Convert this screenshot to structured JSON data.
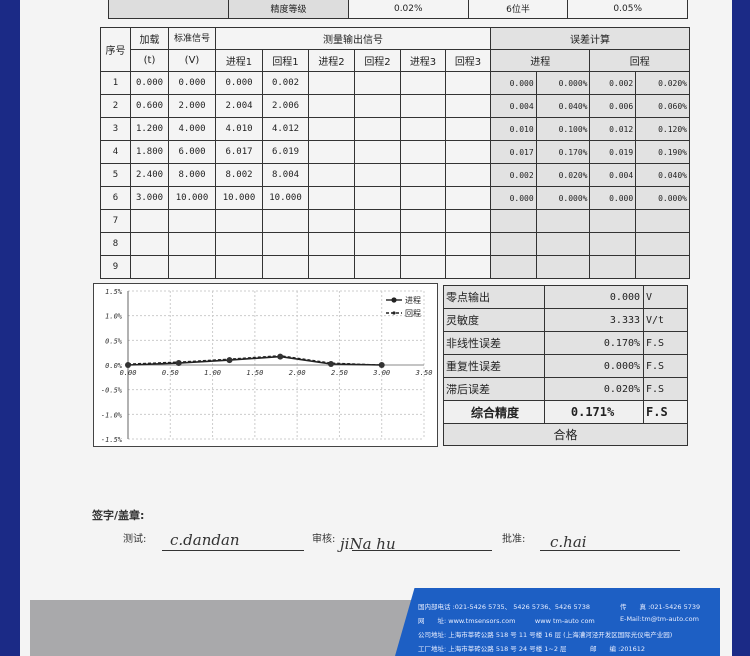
{
  "top_row": {
    "label": "精度等级",
    "cells": [
      "0.02%",
      "6位半",
      "0.05%"
    ]
  },
  "table": {
    "headers": {
      "seq": "序号",
      "load": "加载",
      "load_unit": "(t)",
      "std": "标准信号",
      "std_unit": "(V)",
      "measured": "测量输出信号",
      "error_calc": "误差计算",
      "sub": [
        "进程1",
        "回程1",
        "进程2",
        "回程2",
        "进程3",
        "回程3"
      ],
      "err_fwd": "进程",
      "err_rev": "回程"
    },
    "rows": [
      {
        "n": "1",
        "load": "0.000",
        "std": "0.000",
        "f1": "0.000",
        "r1": "0.002",
        "ef": "0.000",
        "efp": "0.000%",
        "er": "0.002",
        "erp": "0.020%"
      },
      {
        "n": "2",
        "load": "0.600",
        "std": "2.000",
        "f1": "2.004",
        "r1": "2.006",
        "ef": "0.004",
        "efp": "0.040%",
        "er": "0.006",
        "erp": "0.060%"
      },
      {
        "n": "3",
        "load": "1.200",
        "std": "4.000",
        "f1": "4.010",
        "r1": "4.012",
        "ef": "0.010",
        "efp": "0.100%",
        "er": "0.012",
        "erp": "0.120%"
      },
      {
        "n": "4",
        "load": "1.800",
        "std": "6.000",
        "f1": "6.017",
        "r1": "6.019",
        "ef": "0.017",
        "efp": "0.170%",
        "er": "0.019",
        "erp": "0.190%"
      },
      {
        "n": "5",
        "load": "2.400",
        "std": "8.000",
        "f1": "8.002",
        "r1": "8.004",
        "ef": "0.002",
        "efp": "0.020%",
        "er": "0.004",
        "erp": "0.040%"
      },
      {
        "n": "6",
        "load": "3.000",
        "std": "10.000",
        "f1": "10.000",
        "r1": "10.000",
        "ef": "0.000",
        "efp": "0.000%",
        "er": "0.000",
        "erp": "0.000%"
      },
      {
        "n": "7"
      },
      {
        "n": "8"
      },
      {
        "n": "9"
      }
    ]
  },
  "chart_data": {
    "type": "line",
    "x": [
      0,
      0.6,
      1.2,
      1.8,
      2.4,
      3.0
    ],
    "series": [
      {
        "name": "进程",
        "values": [
          0,
          0.04,
          0.1,
          0.17,
          0.02,
          0
        ]
      },
      {
        "name": "回程",
        "values": [
          0.02,
          0.06,
          0.12,
          0.19,
          0.04,
          0
        ]
      }
    ],
    "xlim": [
      0,
      3.5
    ],
    "ylim": [
      -1.5,
      1.5
    ],
    "xticks": [
      "0.00",
      "0.50",
      "1.00",
      "1.50",
      "2.00",
      "2.50",
      "3.00",
      "3.50"
    ],
    "yticks": [
      "1.5%",
      "1.0%",
      "0.5%",
      "0.0%",
      "-0.5%",
      "-1.0%",
      "-1.5%"
    ],
    "grid": true,
    "legend": "top-right"
  },
  "summary": [
    {
      "label": "零点输出",
      "value": "0.000",
      "unit": "V"
    },
    {
      "label": "灵敏度",
      "value": "3.333",
      "unit": "V/t"
    },
    {
      "label": "非线性误差",
      "value": "0.170%",
      "unit": "F.S"
    },
    {
      "label": "重复性误差",
      "value": "0.000%",
      "unit": "F.S"
    },
    {
      "label": "滞后误差",
      "value": "0.020%",
      "unit": "F.S"
    },
    {
      "label": "综合精度",
      "value": "0.171%",
      "unit": "F.S"
    }
  ],
  "result": "合格",
  "signature": {
    "title": "签字/盖章:",
    "test": "测试:",
    "review": "审核:",
    "approve": "批准:",
    "sig_test": "c.dandan",
    "sig_review": "jiNa hu",
    "sig_approve": "c.hai"
  },
  "footer": {
    "phone": "国内部电话 :021-5426 5735、 5426 5736、5426 5738",
    "fax": "传　　真 :021-5426 5739",
    "web": "网　　址: www.tmsensors.com　　　www tm-auto com",
    "email": "E-Mail:tm@tm-auto.com",
    "company": "公司地址: 上海市莘砖公路 518 号 11 号楼 16 层 (上海漕河泾开发区国际光仪电产业园)",
    "factory": "工厂地址: 上海市莘砖公路 518 号 24 号楼 1~2 层",
    "postcode": "邮　　编 :201612"
  },
  "colors": {
    "frame": "#1b2a86",
    "footer_blue": "#1d5fc4",
    "footer_gray": "#a9a9ab"
  }
}
